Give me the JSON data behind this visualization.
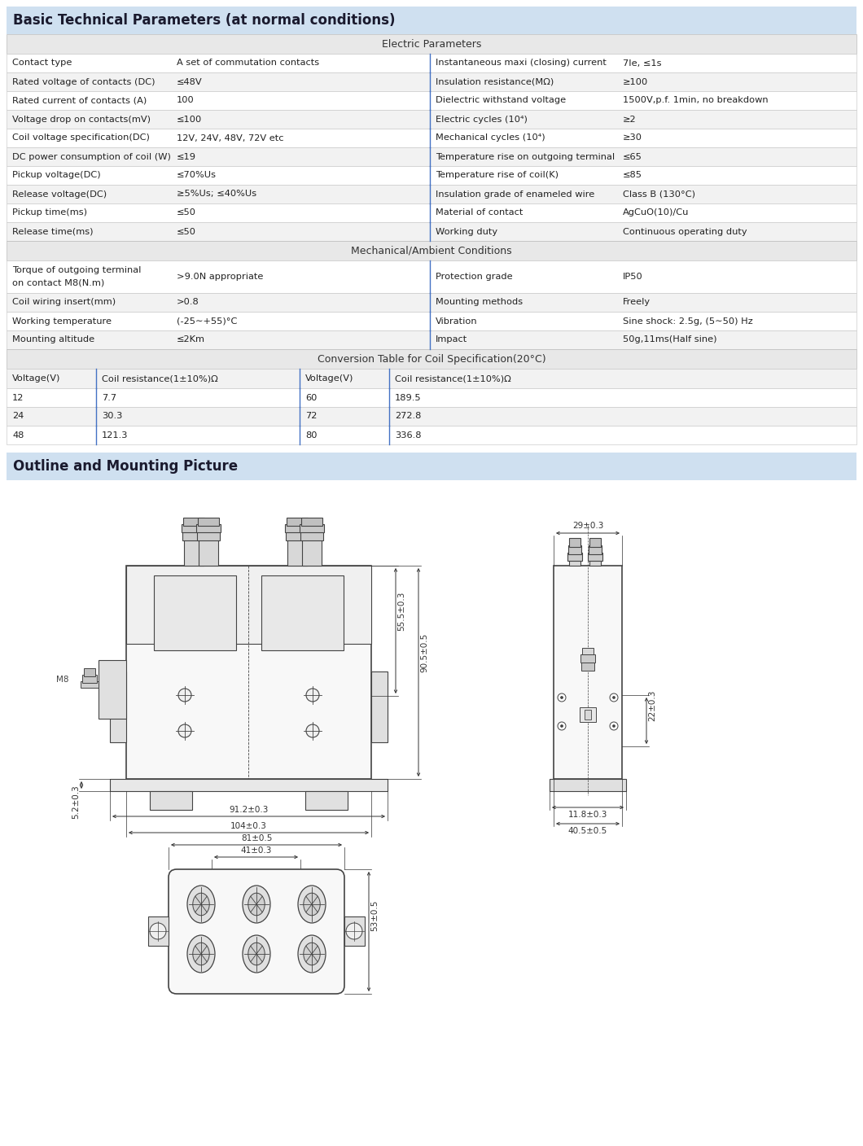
{
  "title": "Basic Technical Parameters (at normal conditions)",
  "title_bg": "#cfe0f0",
  "section_bg": "#e8e8e8",
  "row_bg_light": "#ffffff",
  "row_bg_dark": "#f2f2f2",
  "outline_title": "Outline and Mounting Picture",
  "outline_title_bg": "#cfe0f0",
  "electric_params_header": "Electric Parameters",
  "mechanical_header": "Mechanical/Ambient Conditions",
  "conversion_header": "Conversion Table for Coil Specification(20°C)",
  "left_params": [
    [
      "Contact type",
      "A set of commutation contacts"
    ],
    [
      "Rated voltage of contacts (DC)",
      "≤48V"
    ],
    [
      "Rated current of contacts (A)",
      "100"
    ],
    [
      "Voltage drop on contacts(mV)",
      "≤100"
    ],
    [
      "Coil voltage specification(DC)",
      "12V, 24V, 48V, 72V etc"
    ],
    [
      "DC power consumption of coil (W)",
      "≤19"
    ],
    [
      "Pickup voltage(DC)",
      "≤70%Us"
    ],
    [
      "Release voltage(DC)",
      "≥5%Us; ≤40%Us"
    ],
    [
      "Pickup time(ms)",
      "≤50"
    ],
    [
      "Release time(ms)",
      "≤50"
    ]
  ],
  "right_params": [
    [
      "Instantaneous maxi (closing) current",
      "7Ie, ≤1s"
    ],
    [
      "Insulation resistance(MΩ)",
      "≥100"
    ],
    [
      "Dielectric withstand voltage",
      "1500V,p.f. 1min, no breakdown"
    ],
    [
      "Electric cycles (10⁴)",
      "≥2"
    ],
    [
      "Mechanical cycles (10⁴)",
      "≥30"
    ],
    [
      "Temperature rise on outgoing terminal",
      "≤65"
    ],
    [
      "Temperature rise of coil(K)",
      "≤85"
    ],
    [
      "Insulation grade of enameled wire",
      "Class B (130°C)"
    ],
    [
      "Material of contact",
      "AgCuO(10)/Cu"
    ],
    [
      "Working duty",
      "Continuous operating duty"
    ]
  ],
  "mechanical_left": [
    [
      "Torque of outgoing terminal\non contact M8(N.m)",
      ">9.0N appropriate"
    ],
    [
      "Coil wiring insert(mm)",
      ">0.8"
    ],
    [
      "Working temperature",
      "(-25∼+55)°C"
    ],
    [
      "Mounting altitude",
      "≤2Km"
    ]
  ],
  "mechanical_right": [
    [
      "Protection grade",
      "IP50"
    ],
    [
      "Mounting methods",
      "Freely"
    ],
    [
      "Vibration",
      "Sine shock: 2.5g, (5∼50) Hz"
    ],
    [
      "Impact",
      "50g,11ms(Half sine)"
    ]
  ],
  "conversion_cols": [
    "Voltage(V)",
    "Coil resistance(1±10%)Ω",
    "Voltage(V)",
    "Coil resistance(1±10%)Ω"
  ],
  "conversion_data": [
    [
      "12",
      "7.7",
      "60",
      "189.5"
    ],
    [
      "24",
      "30.3",
      "72",
      "272.8"
    ],
    [
      "48",
      "121.3",
      "80",
      "336.8"
    ]
  ],
  "dim_color": "#333333",
  "draw_line_color": "#444444",
  "draw_bg": "#ffffff"
}
